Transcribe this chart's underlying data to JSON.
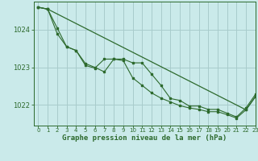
{
  "title": "Graphe pression niveau de la mer (hPa)",
  "background_color": "#caeaea",
  "grid_color": "#a8cccc",
  "line_color": "#2d6a2d",
  "xlim": [
    -0.5,
    23
  ],
  "ylim": [
    1021.45,
    1024.75
  ],
  "yticks": [
    1022,
    1023,
    1024
  ],
  "xticks": [
    0,
    1,
    2,
    3,
    4,
    5,
    6,
    7,
    8,
    9,
    10,
    11,
    12,
    13,
    14,
    15,
    16,
    17,
    18,
    19,
    20,
    21,
    22,
    23
  ],
  "series1_x": [
    0,
    1,
    2,
    3,
    4,
    5,
    6,
    7,
    8,
    9,
    10,
    11,
    12,
    13,
    14,
    15,
    16,
    17,
    18,
    19,
    20,
    21,
    22,
    23
  ],
  "series1_y": [
    1024.6,
    1024.55,
    1024.05,
    1023.55,
    1023.45,
    1023.05,
    1022.98,
    1023.22,
    1023.22,
    1023.18,
    1022.72,
    1022.52,
    1022.32,
    1022.18,
    1022.08,
    1021.98,
    1021.92,
    1021.88,
    1021.82,
    1021.82,
    1021.74,
    1021.65,
    1021.87,
    1022.22
  ],
  "series2_x": [
    0,
    1,
    2,
    3,
    4,
    5,
    6,
    7,
    8,
    9,
    10,
    11,
    12,
    13,
    14,
    15,
    16,
    17,
    18,
    19,
    20,
    21,
    22,
    23
  ],
  "series2_y": [
    1024.6,
    1024.55,
    1023.9,
    1023.55,
    1023.45,
    1023.1,
    1023.0,
    1022.88,
    1023.22,
    1023.22,
    1023.12,
    1023.12,
    1022.82,
    1022.52,
    1022.17,
    1022.12,
    1021.97,
    1021.97,
    1021.88,
    1021.88,
    1021.78,
    1021.68,
    1021.92,
    1022.28
  ],
  "series3_x": [
    0,
    1,
    22,
    23
  ],
  "series3_y": [
    1024.6,
    1024.55,
    1021.87,
    1022.22
  ]
}
